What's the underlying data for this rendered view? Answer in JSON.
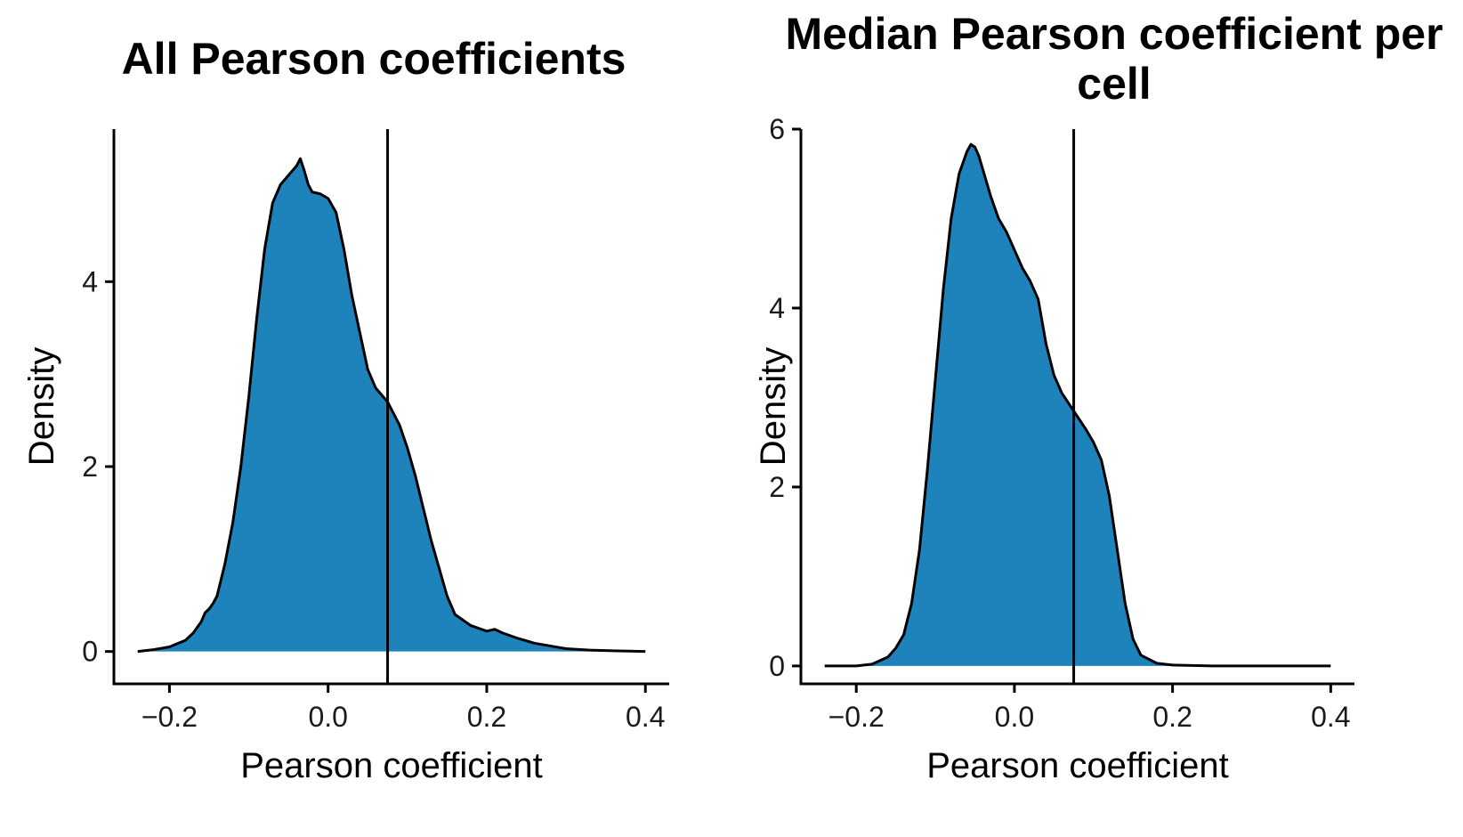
{
  "colors": {
    "fill": "#1f83bb",
    "stroke": "#000000",
    "axis": "#000000"
  },
  "chart_data": [
    {
      "type": "area",
      "title": "All Pearson coefficients",
      "xlabel": "Pearson coefficient",
      "ylabel": "Density",
      "xlim": [
        -0.27,
        0.43
      ],
      "ylim": [
        -0.35,
        5.65
      ],
      "xticks": [
        -0.2,
        0.0,
        0.2,
        0.4
      ],
      "xtick_labels": [
        "−0.2",
        "0.0",
        "0.2",
        "0.4"
      ],
      "yticks": [
        0,
        2,
        4
      ],
      "ytick_labels": [
        "0",
        "2",
        "4"
      ],
      "grid": false,
      "legend": "none",
      "vline_x": 0.075,
      "series": [
        {
          "x": [
            -0.24,
            -0.22,
            -0.2,
            -0.18,
            -0.17,
            -0.16,
            -0.155,
            -0.15,
            -0.145,
            -0.14,
            -0.13,
            -0.12,
            -0.11,
            -0.1,
            -0.09,
            -0.08,
            -0.07,
            -0.06,
            -0.05,
            -0.04,
            -0.035,
            -0.03,
            -0.025,
            -0.02,
            -0.01,
            0.0,
            0.01,
            0.02,
            0.03,
            0.04,
            0.05,
            0.06,
            0.075,
            0.09,
            0.1,
            0.11,
            0.12,
            0.13,
            0.14,
            0.15,
            0.16,
            0.18,
            0.2,
            0.21,
            0.22,
            0.24,
            0.26,
            0.28,
            0.3,
            0.33,
            0.36,
            0.4
          ],
          "y": [
            0.0,
            0.02,
            0.05,
            0.12,
            0.2,
            0.32,
            0.42,
            0.46,
            0.52,
            0.6,
            0.95,
            1.4,
            2.0,
            2.75,
            3.6,
            4.35,
            4.85,
            5.05,
            5.15,
            5.25,
            5.33,
            5.2,
            5.05,
            4.97,
            4.95,
            4.9,
            4.75,
            4.35,
            3.85,
            3.45,
            3.05,
            2.85,
            2.7,
            2.45,
            2.2,
            1.9,
            1.55,
            1.2,
            0.9,
            0.6,
            0.4,
            0.28,
            0.22,
            0.24,
            0.2,
            0.14,
            0.09,
            0.06,
            0.03,
            0.015,
            0.008,
            0.0
          ]
        }
      ]
    },
    {
      "type": "area",
      "title": "Median Pearson coefficient per cell",
      "xlabel": "Pearson coefficient",
      "ylabel": "Density",
      "xlim": [
        -0.27,
        0.43
      ],
      "ylim": [
        -0.2,
        6.0
      ],
      "xticks": [
        -0.2,
        0.0,
        0.2,
        0.4
      ],
      "xtick_labels": [
        "−0.2",
        "0.0",
        "0.2",
        "0.4"
      ],
      "yticks": [
        0,
        2,
        4,
        6
      ],
      "ytick_labels": [
        "0",
        "2",
        "4",
        "6"
      ],
      "grid": false,
      "legend": "none",
      "vline_x": 0.075,
      "series": [
        {
          "x": [
            -0.24,
            -0.2,
            -0.18,
            -0.16,
            -0.15,
            -0.14,
            -0.13,
            -0.12,
            -0.11,
            -0.1,
            -0.09,
            -0.08,
            -0.07,
            -0.06,
            -0.055,
            -0.05,
            -0.045,
            -0.04,
            -0.03,
            -0.02,
            -0.01,
            0.0,
            0.01,
            0.02,
            0.03,
            0.04,
            0.05,
            0.06,
            0.075,
            0.09,
            0.1,
            0.11,
            0.12,
            0.13,
            0.14,
            0.15,
            0.16,
            0.18,
            0.2,
            0.25,
            0.3,
            0.4
          ],
          "y": [
            0.0,
            0.0,
            0.02,
            0.1,
            0.2,
            0.35,
            0.7,
            1.3,
            2.2,
            3.2,
            4.2,
            5.0,
            5.5,
            5.75,
            5.83,
            5.8,
            5.7,
            5.55,
            5.25,
            5.0,
            4.85,
            4.65,
            4.45,
            4.3,
            4.1,
            3.6,
            3.25,
            3.05,
            2.85,
            2.65,
            2.5,
            2.3,
            1.9,
            1.3,
            0.7,
            0.3,
            0.12,
            0.03,
            0.01,
            0.0,
            0.0,
            0.0
          ]
        }
      ]
    }
  ]
}
